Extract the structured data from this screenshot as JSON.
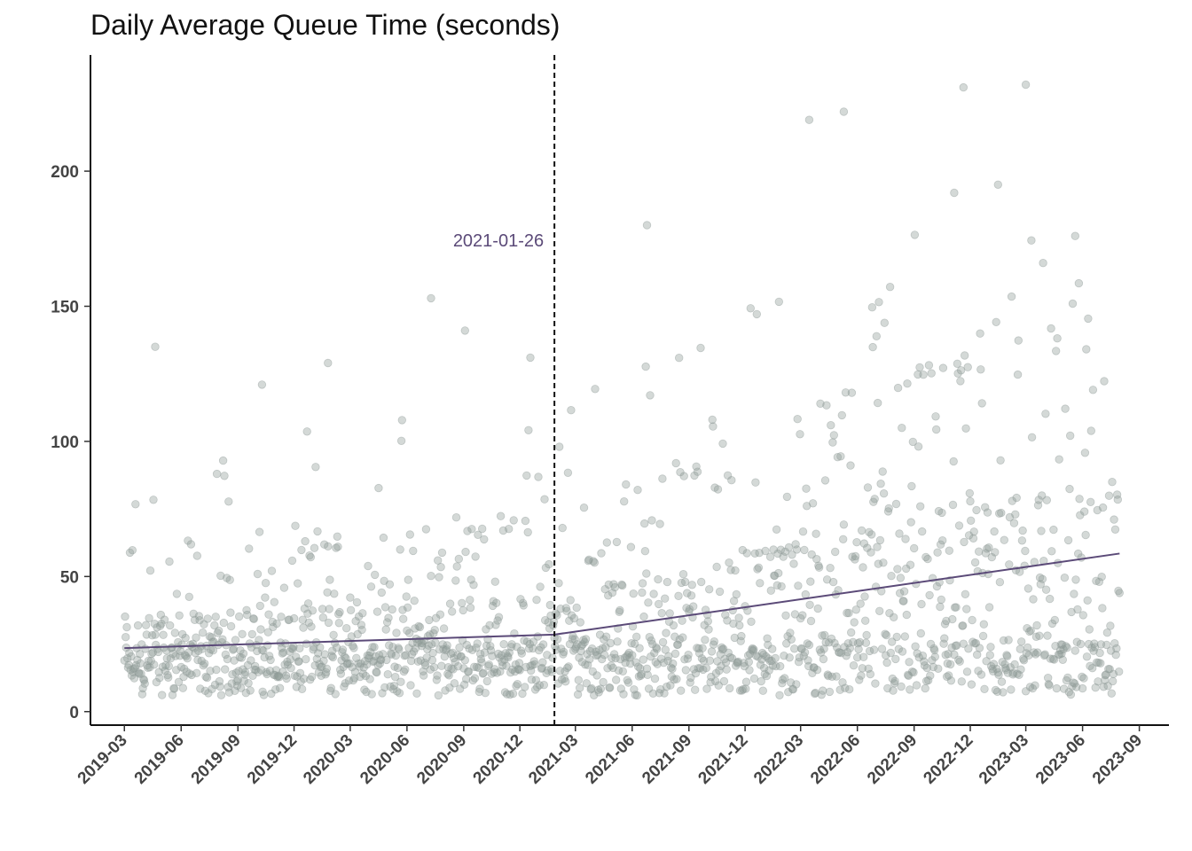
{
  "chart_data": {
    "type": "scatter",
    "title": "Daily Average Queue Time (seconds)",
    "xlabel": "",
    "ylabel": "",
    "x_range": [
      "2019-01-05",
      "2023-10-19"
    ],
    "ylim": [
      -5,
      243
    ],
    "y_ticks": [
      0,
      50,
      100,
      150,
      200
    ],
    "x_ticks": [
      "2019-03",
      "2019-06",
      "2019-09",
      "2019-12",
      "2020-03",
      "2020-06",
      "2020-09",
      "2020-12",
      "2021-03",
      "2021-06",
      "2021-09",
      "2021-12",
      "2022-03",
      "2022-06",
      "2022-09",
      "2022-12",
      "2023-03",
      "2023-06",
      "2023-09"
    ],
    "grid": false,
    "legend": "none",
    "point_color": "#8f9a97",
    "trend_color": "#5b4a78",
    "vline": {
      "date": "2021-01-26",
      "label": "2021-01-26",
      "color": "#111111",
      "label_color": "#5b4a78"
    },
    "trend_segments": [
      {
        "start": "2019-03-01",
        "end": "2021-01-26",
        "y_start": 23.5,
        "y_end": 28.5
      },
      {
        "start": "2021-01-26",
        "end": "2023-07-31",
        "y_start": 28.5,
        "y_end": 58.5
      }
    ],
    "series_extremes": [
      {
        "x": "2019-04-20",
        "y": 135
      },
      {
        "x": "2019-10-10",
        "y": 121
      },
      {
        "x": "2020-01-25",
        "y": 129
      },
      {
        "x": "2020-07-10",
        "y": 153
      },
      {
        "x": "2020-09-03",
        "y": 141
      },
      {
        "x": "2020-12-18",
        "y": 131
      },
      {
        "x": "2021-06-25",
        "y": 180
      },
      {
        "x": "2022-03-15",
        "y": 219
      },
      {
        "x": "2022-05-10",
        "y": 222
      },
      {
        "x": "2022-11-20",
        "y": 231
      },
      {
        "x": "2023-03-01",
        "y": 232
      },
      {
        "x": "2023-01-15",
        "y": 195
      },
      {
        "x": "2022-11-05",
        "y": 192
      },
      {
        "x": "2023-05-20",
        "y": 176
      }
    ]
  }
}
